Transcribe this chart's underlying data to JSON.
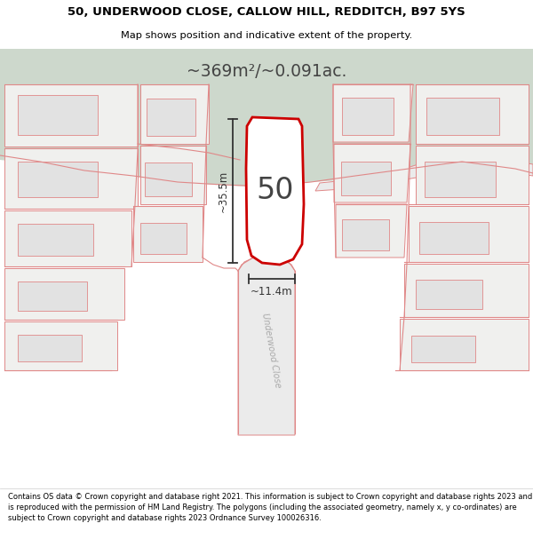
{
  "title_line1": "50, UNDERWOOD CLOSE, CALLOW HILL, REDDITCH, B97 5YS",
  "title_line2": "Map shows position and indicative extent of the property.",
  "area_text": "~369m²/~0.091ac.",
  "number_label": "50",
  "dim_height": "~35.5m",
  "dim_width": "~11.4m",
  "road_label": "Underwood Close",
  "footer_text": "Contains OS data © Crown copyright and database right 2021. This information is subject to Crown copyright and database rights 2023 and is reproduced with the permission of HM Land Registry. The polygons (including the associated geometry, namely x, y co-ordinates) are subject to Crown copyright and database rights 2023 Ordnance Survey 100026316.",
  "bg_light": "#f0f0ee",
  "bg_green": "#cdd8cc",
  "plot_fill": "#ffffff",
  "plot_edge": "#cc0000",
  "map_edge": "#e08888",
  "bld_fill": "#e2e2e2",
  "road_fill": "#ebebeb",
  "title_bg": "#ffffff",
  "footer_bg": "#ffffff",
  "dim_color": "#333333",
  "label_color": "#444444",
  "road_text_color": "#aaaaaa"
}
